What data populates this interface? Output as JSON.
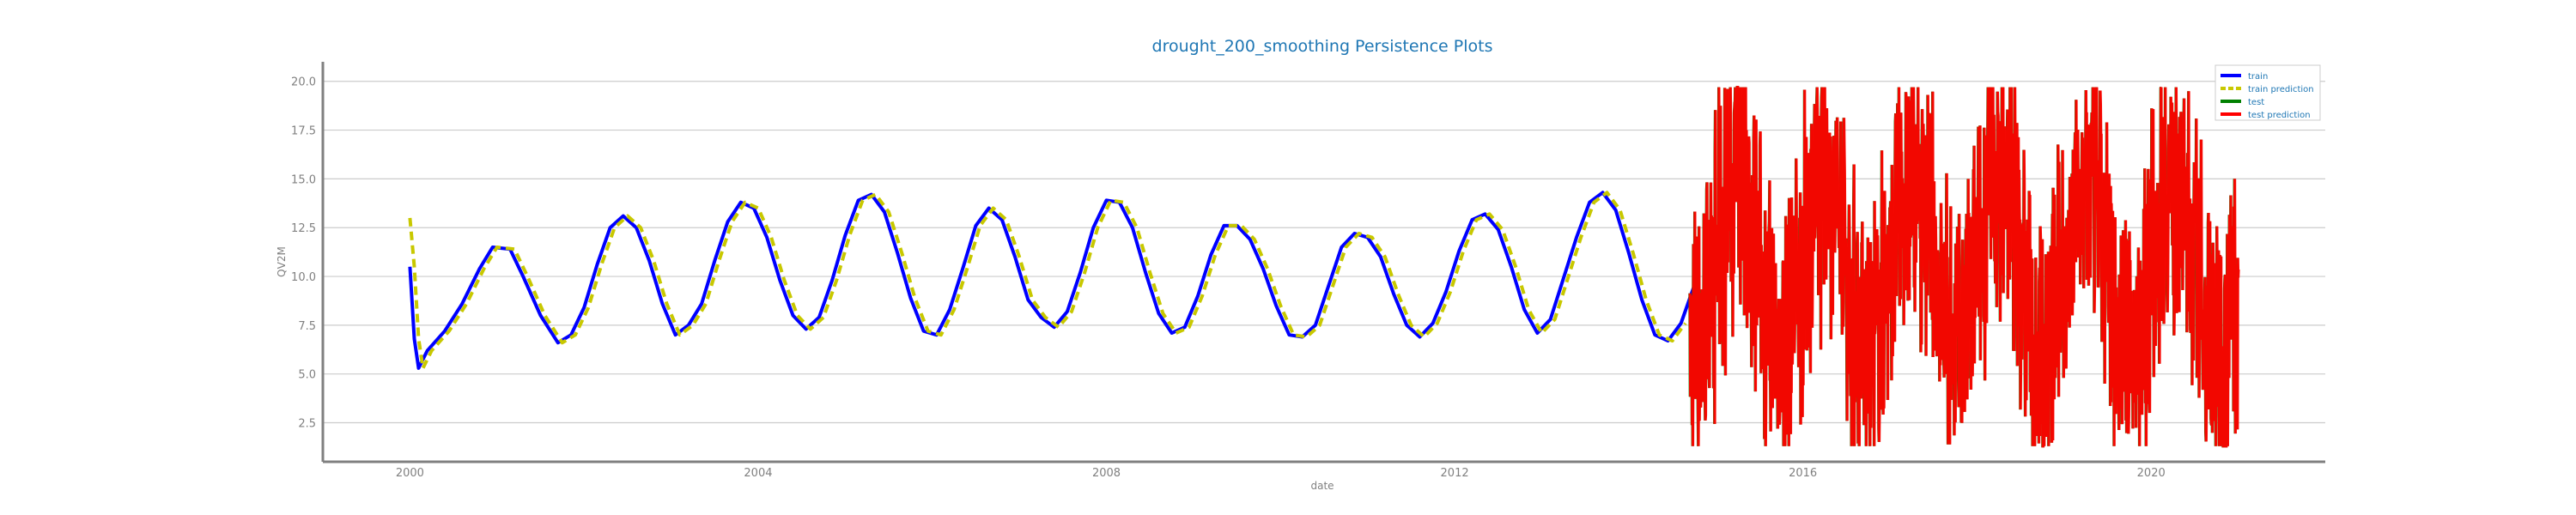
{
  "chart_data": {
    "type": "line",
    "title": "drought_200_smoothing Persistence Plots",
    "xlabel": "date",
    "ylabel": "QV2M",
    "xlim": [
      1999.0,
      2022.0
    ],
    "ylim": [
      0.5,
      21.0
    ],
    "xticks": [
      2000,
      2004,
      2008,
      2012,
      2016,
      2020
    ],
    "xtick_labels": [
      "2000",
      "2004",
      "2008",
      "2012",
      "2016",
      "2020"
    ],
    "yticks": [
      2.5,
      5.0,
      7.5,
      10.0,
      12.5,
      15.0,
      17.5,
      20.0
    ],
    "ytick_labels": [
      "2.5",
      "5.0",
      "7.5",
      "10.0",
      "12.5",
      "15.0",
      "17.5",
      "20.0"
    ],
    "grid": "horizontal",
    "legend_position": "top-right",
    "train_range": [
      2000.0,
      2014.7
    ],
    "test_range": [
      2014.7,
      2021.0
    ],
    "series": [
      {
        "name": "train",
        "color": "#0000ff",
        "style": "solid",
        "points": [
          [
            2000.0,
            10.5
          ],
          [
            2000.05,
            6.8
          ],
          [
            2000.1,
            5.3
          ],
          [
            2000.2,
            6.2
          ],
          [
            2000.4,
            7.2
          ],
          [
            2000.6,
            8.6
          ],
          [
            2000.8,
            10.4
          ],
          [
            2000.95,
            11.5
          ],
          [
            2001.15,
            11.4
          ],
          [
            2001.3,
            10.0
          ],
          [
            2001.5,
            8.0
          ],
          [
            2001.7,
            6.6
          ],
          [
            2001.85,
            7.0
          ],
          [
            2002.0,
            8.4
          ],
          [
            2002.15,
            10.6
          ],
          [
            2002.3,
            12.5
          ],
          [
            2002.45,
            13.1
          ],
          [
            2002.6,
            12.5
          ],
          [
            2002.75,
            10.8
          ],
          [
            2002.9,
            8.6
          ],
          [
            2003.05,
            7.0
          ],
          [
            2003.2,
            7.5
          ],
          [
            2003.35,
            8.6
          ],
          [
            2003.5,
            10.8
          ],
          [
            2003.65,
            12.8
          ],
          [
            2003.8,
            13.8
          ],
          [
            2003.95,
            13.5
          ],
          [
            2004.1,
            12.0
          ],
          [
            2004.25,
            9.8
          ],
          [
            2004.4,
            8.0
          ],
          [
            2004.55,
            7.3
          ],
          [
            2004.7,
            7.9
          ],
          [
            2004.85,
            9.8
          ],
          [
            2005.0,
            12.1
          ],
          [
            2005.15,
            13.9
          ],
          [
            2005.3,
            14.2
          ],
          [
            2005.45,
            13.3
          ],
          [
            2005.6,
            11.2
          ],
          [
            2005.75,
            8.9
          ],
          [
            2005.9,
            7.2
          ],
          [
            2006.05,
            7.0
          ],
          [
            2006.2,
            8.3
          ],
          [
            2006.35,
            10.4
          ],
          [
            2006.5,
            12.6
          ],
          [
            2006.65,
            13.5
          ],
          [
            2006.8,
            12.9
          ],
          [
            2006.95,
            11.0
          ],
          [
            2007.1,
            8.8
          ],
          [
            2007.25,
            7.9
          ],
          [
            2007.4,
            7.4
          ],
          [
            2007.55,
            8.2
          ],
          [
            2007.7,
            10.2
          ],
          [
            2007.85,
            12.5
          ],
          [
            2008.0,
            13.9
          ],
          [
            2008.15,
            13.8
          ],
          [
            2008.3,
            12.5
          ],
          [
            2008.45,
            10.2
          ],
          [
            2008.6,
            8.1
          ],
          [
            2008.75,
            7.1
          ],
          [
            2008.9,
            7.4
          ],
          [
            2009.05,
            9.0
          ],
          [
            2009.2,
            11.1
          ],
          [
            2009.35,
            12.6
          ],
          [
            2009.5,
            12.6
          ],
          [
            2009.65,
            11.9
          ],
          [
            2009.8,
            10.4
          ],
          [
            2009.95,
            8.5
          ],
          [
            2010.1,
            7.0
          ],
          [
            2010.25,
            6.9
          ],
          [
            2010.4,
            7.5
          ],
          [
            2010.55,
            9.5
          ],
          [
            2010.7,
            11.5
          ],
          [
            2010.85,
            12.2
          ],
          [
            2011.0,
            12.0
          ],
          [
            2011.15,
            11.0
          ],
          [
            2011.3,
            9.1
          ],
          [
            2011.45,
            7.5
          ],
          [
            2011.6,
            6.9
          ],
          [
            2011.75,
            7.6
          ],
          [
            2011.9,
            9.2
          ],
          [
            2012.05,
            11.3
          ],
          [
            2012.2,
            12.9
          ],
          [
            2012.35,
            13.2
          ],
          [
            2012.5,
            12.4
          ],
          [
            2012.65,
            10.5
          ],
          [
            2012.8,
            8.3
          ],
          [
            2012.95,
            7.1
          ],
          [
            2013.1,
            7.8
          ],
          [
            2013.25,
            9.9
          ],
          [
            2013.4,
            12.0
          ],
          [
            2013.55,
            13.8
          ],
          [
            2013.7,
            14.3
          ],
          [
            2013.85,
            13.4
          ],
          [
            2014.0,
            11.2
          ],
          [
            2014.15,
            8.8
          ],
          [
            2014.3,
            7.0
          ],
          [
            2014.45,
            6.7
          ],
          [
            2014.6,
            7.6
          ],
          [
            2014.75,
            9.5
          ],
          [
            2014.9,
            11.8
          ],
          [
            2015.0,
            13.0
          ],
          [
            2015.15,
            13.8
          ],
          [
            2015.3,
            13.2
          ],
          [
            2015.45,
            11.2
          ],
          [
            2015.6,
            8.8
          ],
          [
            2015.75,
            7.3
          ],
          [
            2015.9,
            6.9
          ],
          [
            2016.05,
            7.9
          ],
          [
            2016.2,
            10.0
          ],
          [
            2016.35,
            12.3
          ],
          [
            2016.5,
            13.3
          ],
          [
            2016.65,
            13.2
          ],
          [
            2016.8,
            12.1
          ],
          [
            2016.95,
            9.9
          ],
          [
            2017.1,
            7.9
          ],
          [
            2017.25,
            7.0
          ],
          [
            2017.4,
            7.5
          ],
          [
            2017.55,
            9.6
          ],
          [
            2017.7,
            11.9
          ],
          [
            2017.85,
            13.4
          ],
          [
            2018.0,
            13.4
          ],
          [
            2018.15,
            12.4
          ],
          [
            2018.3,
            10.2
          ],
          [
            2018.45,
            8.0
          ],
          [
            2018.6,
            7.0
          ],
          [
            2018.75,
            7.6
          ],
          [
            2018.9,
            9.8
          ],
          [
            2019.05,
            12.3
          ],
          [
            2019.2,
            13.9
          ],
          [
            2019.35,
            14.0
          ],
          [
            2019.5,
            13.0
          ],
          [
            2019.65,
            10.9
          ],
          [
            2019.8,
            8.6
          ],
          [
            2019.95,
            6.9
          ],
          [
            2020.1,
            6.6
          ],
          [
            2020.25,
            7.8
          ],
          [
            2020.4,
            10.0
          ],
          [
            2020.55,
            12.3
          ],
          [
            2020.7,
            13.8
          ]
        ]
      },
      {
        "name": "train prediction",
        "color": "#c8c800",
        "style": "dashed",
        "points": [
          [
            2000.0,
            13.0
          ],
          [
            2000.05,
            10.5
          ],
          [
            2000.1,
            6.8
          ],
          [
            2000.15,
            5.3
          ],
          [
            2000.25,
            6.2
          ],
          [
            2000.45,
            7.2
          ],
          [
            2000.65,
            8.6
          ],
          [
            2000.85,
            10.4
          ],
          [
            2001.0,
            11.5
          ],
          [
            2001.2,
            11.4
          ],
          [
            2001.35,
            10.0
          ],
          [
            2001.55,
            8.0
          ],
          [
            2001.75,
            6.6
          ],
          [
            2001.9,
            7.0
          ],
          [
            2002.05,
            8.4
          ],
          [
            2002.2,
            10.6
          ],
          [
            2002.35,
            12.5
          ],
          [
            2002.5,
            13.1
          ],
          [
            2002.65,
            12.5
          ],
          [
            2002.8,
            10.8
          ],
          [
            2002.95,
            8.6
          ],
          [
            2003.1,
            7.0
          ],
          [
            2003.25,
            7.5
          ],
          [
            2003.4,
            8.6
          ],
          [
            2003.55,
            10.8
          ],
          [
            2003.7,
            12.8
          ],
          [
            2003.85,
            13.8
          ],
          [
            2004.0,
            13.5
          ],
          [
            2004.15,
            12.0
          ],
          [
            2004.3,
            9.8
          ],
          [
            2004.45,
            8.0
          ],
          [
            2004.6,
            7.3
          ],
          [
            2004.75,
            7.9
          ],
          [
            2004.9,
            9.8
          ],
          [
            2005.05,
            12.1
          ],
          [
            2005.2,
            13.9
          ],
          [
            2005.35,
            14.2
          ],
          [
            2005.5,
            13.3
          ],
          [
            2005.65,
            11.2
          ],
          [
            2005.8,
            8.9
          ],
          [
            2005.95,
            7.2
          ],
          [
            2006.1,
            7.0
          ],
          [
            2006.25,
            8.3
          ],
          [
            2006.4,
            10.4
          ],
          [
            2006.55,
            12.6
          ],
          [
            2006.7,
            13.5
          ],
          [
            2006.85,
            12.9
          ],
          [
            2007.0,
            11.0
          ],
          [
            2007.15,
            8.8
          ],
          [
            2007.3,
            7.9
          ],
          [
            2007.45,
            7.4
          ],
          [
            2007.6,
            8.2
          ],
          [
            2007.75,
            10.2
          ],
          [
            2007.9,
            12.5
          ],
          [
            2008.05,
            13.9
          ],
          [
            2008.2,
            13.8
          ],
          [
            2008.35,
            12.5
          ],
          [
            2008.5,
            10.2
          ],
          [
            2008.65,
            8.1
          ],
          [
            2008.8,
            7.1
          ],
          [
            2008.95,
            7.4
          ],
          [
            2009.1,
            9.0
          ],
          [
            2009.25,
            11.1
          ],
          [
            2009.4,
            12.6
          ],
          [
            2009.55,
            12.6
          ],
          [
            2009.7,
            11.9
          ],
          [
            2009.85,
            10.4
          ],
          [
            2010.0,
            8.5
          ],
          [
            2010.15,
            7.0
          ],
          [
            2010.3,
            6.9
          ],
          [
            2010.45,
            7.5
          ],
          [
            2010.6,
            9.5
          ],
          [
            2010.75,
            11.5
          ],
          [
            2010.9,
            12.2
          ],
          [
            2011.05,
            12.0
          ],
          [
            2011.2,
            11.0
          ],
          [
            2011.35,
            9.1
          ],
          [
            2011.5,
            7.5
          ],
          [
            2011.65,
            6.9
          ],
          [
            2011.8,
            7.6
          ],
          [
            2011.95,
            9.2
          ],
          [
            2012.1,
            11.3
          ],
          [
            2012.25,
            12.9
          ],
          [
            2012.4,
            13.2
          ],
          [
            2012.55,
            12.4
          ],
          [
            2012.7,
            10.5
          ],
          [
            2012.85,
            8.3
          ],
          [
            2013.0,
            7.1
          ],
          [
            2013.15,
            7.8
          ],
          [
            2013.3,
            9.9
          ],
          [
            2013.45,
            12.0
          ],
          [
            2013.6,
            13.8
          ],
          [
            2013.75,
            14.3
          ],
          [
            2013.9,
            13.4
          ],
          [
            2014.05,
            11.2
          ],
          [
            2014.2,
            8.8
          ],
          [
            2014.35,
            7.0
          ],
          [
            2014.5,
            6.7
          ],
          [
            2014.65,
            7.6
          ]
        ]
      },
      {
        "name": "test",
        "color": "#008000",
        "style": "solid"
      },
      {
        "name": "test prediction",
        "color": "#ff0000",
        "style": "solid"
      }
    ]
  }
}
